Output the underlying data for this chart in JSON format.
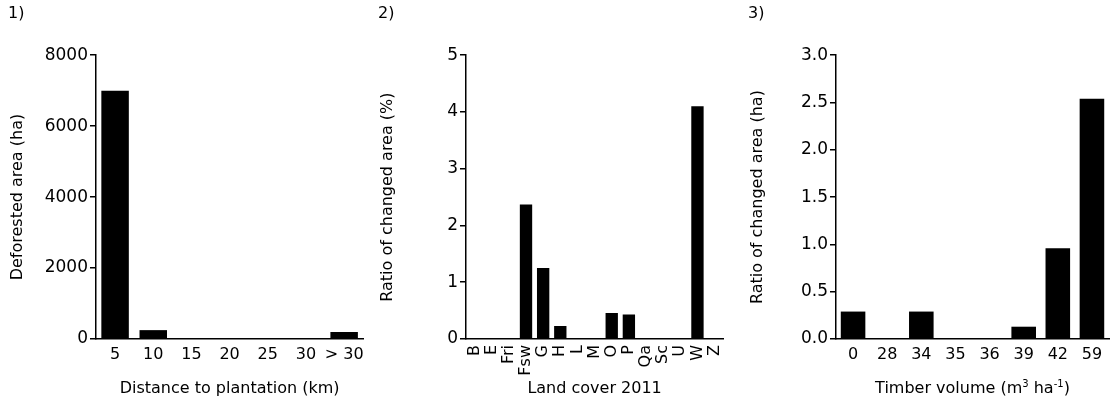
{
  "chart_data": [
    {
      "type": "bar",
      "title": "1)",
      "xlabel": "Distance to plantation (km)",
      "ylabel": "Deforested area (ha)",
      "categories": [
        "5",
        "10",
        "15",
        "20",
        "25",
        "30",
        "> 30"
      ],
      "values": [
        7000,
        250,
        0,
        0,
        0,
        30,
        200
      ],
      "color": "#000000",
      "ylim": [
        0,
        8000
      ],
      "yticks": [
        0,
        2000,
        4000,
        6000,
        8000
      ]
    },
    {
      "type": "bar",
      "title": "2)",
      "xlabel": "Land cover 2011",
      "ylabel": "Ratio of changed area (%)",
      "categories": [
        "B",
        "E",
        "Fri",
        "Fsw",
        "G",
        "H",
        "L",
        "M",
        "O",
        "P",
        "Qa",
        "Sc",
        "U",
        "W",
        "Z"
      ],
      "values": [
        0,
        0,
        0,
        2.37,
        1.25,
        0.23,
        0,
        0,
        0.46,
        0.43,
        0,
        0,
        0,
        4.1,
        0
      ],
      "color": "#000000",
      "ylim": [
        0,
        5
      ],
      "yticks": [
        0,
        1,
        2,
        3,
        4,
        5
      ]
    },
    {
      "type": "bar",
      "title": "3)",
      "xlabel": "Timber volume (m$^{3}$ ha$^{-1}$)",
      "ylabel": "Ratio of changed area (ha)",
      "categories": [
        "0",
        "28",
        "34",
        "35",
        "36",
        "39",
        "42",
        "59"
      ],
      "values": [
        0.29,
        0,
        0.29,
        0,
        0,
        0.13,
        0.96,
        2.54
      ],
      "color": "#000000",
      "ylim": [
        0,
        3
      ],
      "yticks": [
        {
          "value": 0,
          "label": "0.0"
        },
        {
          "value": 0.5,
          "label": "0.5"
        },
        {
          "value": 1,
          "label": "1.0"
        },
        {
          "value": 1.5,
          "label": "1.5"
        },
        {
          "value": 2,
          "label": "2.0"
        },
        {
          "value": 2.5,
          "label": "2.5"
        },
        {
          "value": 3,
          "label": "3.0"
        }
      ]
    }
  ]
}
